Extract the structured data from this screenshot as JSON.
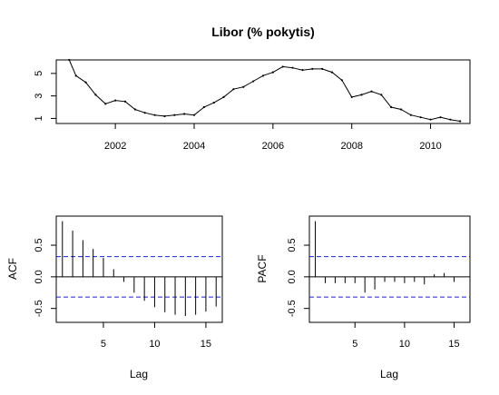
{
  "chart_data": [
    {
      "type": "line",
      "title": "Libor (% pokytis)",
      "xlabel": "",
      "ylabel": "",
      "xlim": [
        2000.5,
        2011.0
      ],
      "ylim": [
        0.55,
        6.2
      ],
      "xticks": [
        2002,
        2004,
        2006,
        2008,
        2010
      ],
      "xtick_labels": [
        "2002",
        "2004",
        "2006",
        "2008",
        "2010"
      ],
      "yticks": [
        1,
        3,
        5
      ],
      "ytick_labels": [
        "1",
        "3",
        "5"
      ],
      "series": [
        {
          "x": [
            2000.83,
            2001.0,
            2001.25,
            2001.5,
            2001.75,
            2002.0,
            2002.25,
            2002.5,
            2002.75,
            2003.0,
            2003.25,
            2003.5,
            2003.75,
            2004.0,
            2004.25,
            2004.5,
            2004.75,
            2005.0,
            2005.25,
            2005.5,
            2005.75,
            2006.0,
            2006.25,
            2006.5,
            2006.75,
            2007.0,
            2007.25,
            2007.5,
            2007.75,
            2008.0,
            2008.25,
            2008.5,
            2008.75,
            2009.0,
            2009.25,
            2009.5,
            2009.75,
            2010.0,
            2010.25,
            2010.5,
            2010.75
          ],
          "y": [
            6.2,
            4.8,
            4.2,
            3.1,
            2.3,
            2.6,
            2.5,
            1.8,
            1.5,
            1.3,
            1.2,
            1.3,
            1.4,
            1.3,
            2.0,
            2.4,
            2.9,
            3.6,
            3.8,
            4.3,
            4.8,
            5.1,
            5.6,
            5.5,
            5.3,
            5.4,
            5.4,
            5.1,
            4.4,
            2.9,
            3.1,
            3.4,
            3.1,
            2.0,
            1.8,
            1.3,
            1.1,
            0.9,
            1.1,
            0.9,
            0.75
          ]
        }
      ]
    },
    {
      "type": "bar",
      "title": "",
      "xlabel": "Lag",
      "ylabel": "ACF",
      "xlim": [
        0.4,
        16.6
      ],
      "ylim": [
        -0.72,
        0.96
      ],
      "xticks": [
        5,
        10,
        15
      ],
      "xtick_labels": [
        "5",
        "10",
        "15"
      ],
      "yticks": [
        -0.5,
        0.0,
        0.5
      ],
      "ytick_labels": [
        "-0.5",
        "0.0",
        "0.5"
      ],
      "confidence_band": 0.32,
      "lags": [
        1,
        2,
        3,
        4,
        5,
        6,
        7,
        8,
        9,
        10,
        11,
        12,
        13,
        14,
        15,
        16
      ],
      "values": [
        0.88,
        0.73,
        0.58,
        0.44,
        0.3,
        0.12,
        -0.08,
        -0.25,
        -0.38,
        -0.48,
        -0.56,
        -0.6,
        -0.62,
        -0.6,
        -0.55,
        -0.47
      ]
    },
    {
      "type": "bar",
      "title": "",
      "xlabel": "Lag",
      "ylabel": "PACF",
      "xlim": [
        0.4,
        16.6
      ],
      "ylim": [
        -0.72,
        0.96
      ],
      "xticks": [
        5,
        10,
        15
      ],
      "xtick_labels": [
        "5",
        "10",
        "15"
      ],
      "yticks": [
        -0.5,
        0.0,
        0.5
      ],
      "ytick_labels": [
        "-0.5",
        "0.0",
        "0.5"
      ],
      "confidence_band": 0.32,
      "lags": [
        1,
        2,
        3,
        4,
        5,
        6,
        7,
        8,
        9,
        10,
        11,
        12,
        13,
        14,
        15,
        16
      ],
      "values": [
        0.88,
        -0.1,
        -0.1,
        -0.1,
        -0.1,
        -0.25,
        -0.2,
        -0.08,
        -0.08,
        -0.1,
        -0.08,
        -0.12,
        0.04,
        0.06,
        -0.08,
        0.0
      ]
    }
  ]
}
